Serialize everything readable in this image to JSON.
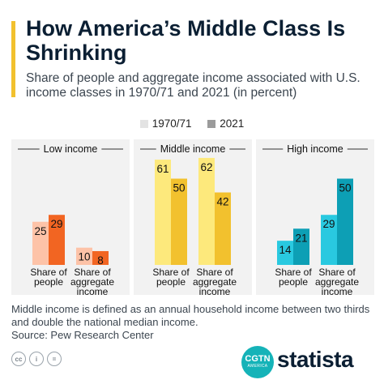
{
  "header": {
    "title": "How America’s Middle Class Is Shrinking",
    "subtitle": "Share of people and aggregate income associated with U.S. income classes in 1970/71 and 2021 (in percent)"
  },
  "legend": {
    "items": [
      {
        "label": "1970/71",
        "color": "#e3e3e3"
      },
      {
        "label": "2021",
        "color": "#9b9b9b"
      }
    ]
  },
  "chart_data": {
    "type": "bar",
    "ylim": [
      0,
      70
    ],
    "legend_position": "top-center",
    "series_names": [
      "1970/71",
      "2021"
    ],
    "panels": [
      {
        "title": "Low income",
        "categories": [
          "Share of people",
          "Share of aggregate income"
        ],
        "category_labels": [
          [
            "Share of",
            "people"
          ],
          [
            "Share of",
            "aggregate",
            "income"
          ]
        ],
        "colors": [
          "#fdc3a8",
          "#f26522"
        ],
        "values_1970": [
          25,
          10
        ],
        "values_2021": [
          29,
          8
        ]
      },
      {
        "title": "Middle income",
        "categories": [
          "Share of people",
          "Share of aggregate income"
        ],
        "category_labels": [
          [
            "Share of",
            "people"
          ],
          [
            "Share of",
            "aggregate",
            "income"
          ]
        ],
        "colors": [
          "#fde97c",
          "#f2c12e"
        ],
        "values_1970": [
          61,
          62
        ],
        "values_2021": [
          50,
          42
        ]
      },
      {
        "title": "High income",
        "categories": [
          "Share of people",
          "Share of aggregate income"
        ],
        "category_labels": [
          [
            "Share of",
            "people"
          ],
          [
            "Share of",
            "aggregate",
            "income"
          ]
        ],
        "colors": [
          "#29c9e0",
          "#0d9fb5"
        ],
        "values_1970": [
          14,
          29
        ],
        "values_2021": [
          21,
          50
        ]
      }
    ]
  },
  "footer": {
    "note": "Middle income is defined as an annual household income between two thirds and double the national median income.",
    "source": "Source: Pew Research Center",
    "cgtn_main": "CGTN",
    "cgtn_sub": "AMERICA",
    "brand": "statista",
    "license_icons": [
      "cc",
      "i",
      "="
    ]
  }
}
